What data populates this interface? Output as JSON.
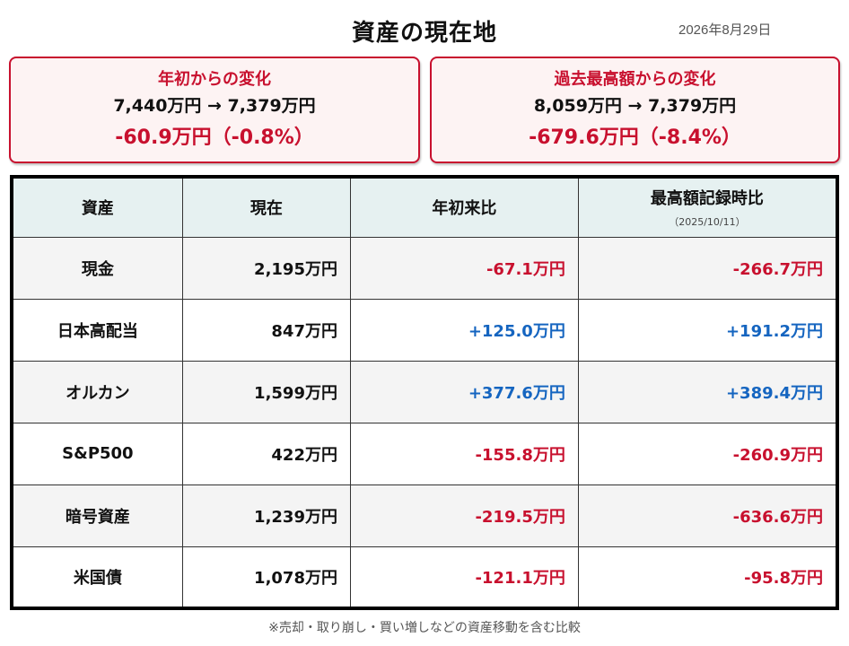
{
  "header": {
    "title": "資産の現在地",
    "date": "2026年8月29日"
  },
  "cards": {
    "ytd": {
      "label": "年初からの変化",
      "range": "7,440万円 → 7,379万円",
      "change": "-60.9万円（-0.8%）"
    },
    "peak": {
      "label": "過去最高額からの変化",
      "range": "8,059万円 → 7,379万円",
      "change": "-679.6万円（-8.4%）"
    }
  },
  "table": {
    "headers": {
      "asset": "資産",
      "current": "現在",
      "ytd": "年初来比",
      "peak": "最高額記録時比",
      "peak_date": "（2025/10/11）"
    },
    "rows": [
      {
        "name": "現金",
        "current": "2,195万円",
        "ytd": "-67.1万円",
        "peak": "-266.7万円"
      },
      {
        "name": "日本高配当",
        "current": "847万円",
        "ytd": "+125.0万円",
        "peak": "+191.2万円"
      },
      {
        "name": "オルカン",
        "current": "1,599万円",
        "ytd": "+377.6万円",
        "peak": "+389.4万円"
      },
      {
        "name": "S&P500",
        "current": "422万円",
        "ytd": "-155.8万円",
        "peak": "-260.9万円"
      },
      {
        "name": "暗号資産",
        "current": "1,239万円",
        "ytd": "-219.5万円",
        "peak": "-636.6万円"
      },
      {
        "name": "米国債",
        "current": "1,078万円",
        "ytd": "-121.1万円",
        "peak": "-95.8万円"
      }
    ]
  },
  "footnote": "※売却・取り崩し・買い増しなどの資産移動を含む比較",
  "colors": {
    "negative": "#c8102e",
    "positive": "#1565c0",
    "header_bg": "#e6f1f1",
    "card_border": "#c8102e"
  }
}
